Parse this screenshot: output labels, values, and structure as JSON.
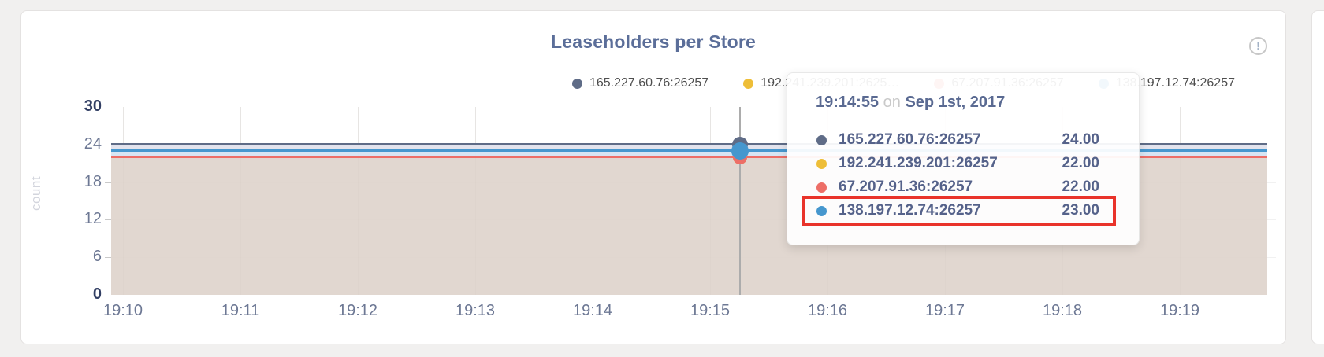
{
  "page": {
    "background": "#f1f0ef"
  },
  "header": {
    "title": "Leaseholders per Store",
    "info_char": "!"
  },
  "legend": {
    "items": [
      {
        "label": "165.227.60.76:26257",
        "color": "#5f6c87"
      },
      {
        "label": "192.241.239.201:2625…",
        "color": "#eebe38"
      },
      {
        "label": "67.207.91.36:26257",
        "color": "#ed6e67"
      },
      {
        "label": "138.197.12.74:26257",
        "color": "#4697ce"
      }
    ]
  },
  "tooltip": {
    "time": "19:14:55",
    "conjunction": "on",
    "date": "Sep 1st, 2017",
    "highlight_color": "#e9332a",
    "rows": [
      {
        "label": "165.227.60.76:26257",
        "value": "24.00",
        "color": "#5f6c87",
        "highlighted": false
      },
      {
        "label": "192.241.239.201:26257",
        "value": "22.00",
        "color": "#eebe38",
        "highlighted": false
      },
      {
        "label": "67.207.91.36:26257",
        "value": "22.00",
        "color": "#ed6e67",
        "highlighted": false
      },
      {
        "label": "138.197.12.74:26257",
        "value": "23.00",
        "color": "#4697ce",
        "highlighted": true
      }
    ]
  },
  "chart_data": {
    "type": "area",
    "title": "Leaseholders per Store",
    "xlabel": "",
    "ylabel": "count",
    "ylim": [
      0,
      30
    ],
    "y_ticks": [
      0,
      6,
      12,
      18,
      24,
      30
    ],
    "x_ticks": [
      "19:10",
      "19:11",
      "19:12",
      "19:13",
      "19:14",
      "19:15",
      "19:16",
      "19:17",
      "19:18",
      "19:19"
    ],
    "grid": true,
    "legend_position": "top-right",
    "series": [
      {
        "name": "165.227.60.76:26257",
        "color": "#5f6c87",
        "value": 24
      },
      {
        "name": "192.241.239.201:26257",
        "color": "#eebe38",
        "value": 22
      },
      {
        "name": "67.207.91.36:26257",
        "color": "#ed6e67",
        "value": 22
      },
      {
        "name": "138.197.12.74:26257",
        "color": "#4697ce",
        "value": 23
      }
    ],
    "area_bands": [
      {
        "from": 0,
        "to": 22,
        "color": "rgba(221,209,201,0.88)"
      },
      {
        "from": 22,
        "to": 23,
        "color": "rgba(214,228,242,0.95)"
      },
      {
        "from": 23,
        "to": 24,
        "color": "rgba(224,226,236,0.95)"
      }
    ],
    "hover": {
      "time": "19:14:55",
      "date": "Sep 1st, 2017",
      "x_frac": 0.542,
      "points": [
        {
          "series": "165.227.60.76:26257",
          "value": 24,
          "color": "#5f6c87",
          "radius": 10
        },
        {
          "series": "192.241.239.201:26257",
          "value": 22,
          "color": "#eebe38",
          "radius": 9
        },
        {
          "series": "67.207.91.36:26257",
          "value": 22,
          "color": "#ed6e67",
          "radius": 9
        },
        {
          "series": "138.197.12.74:26257",
          "value": 23,
          "color": "#4697ce",
          "radius": 11
        }
      ]
    }
  }
}
